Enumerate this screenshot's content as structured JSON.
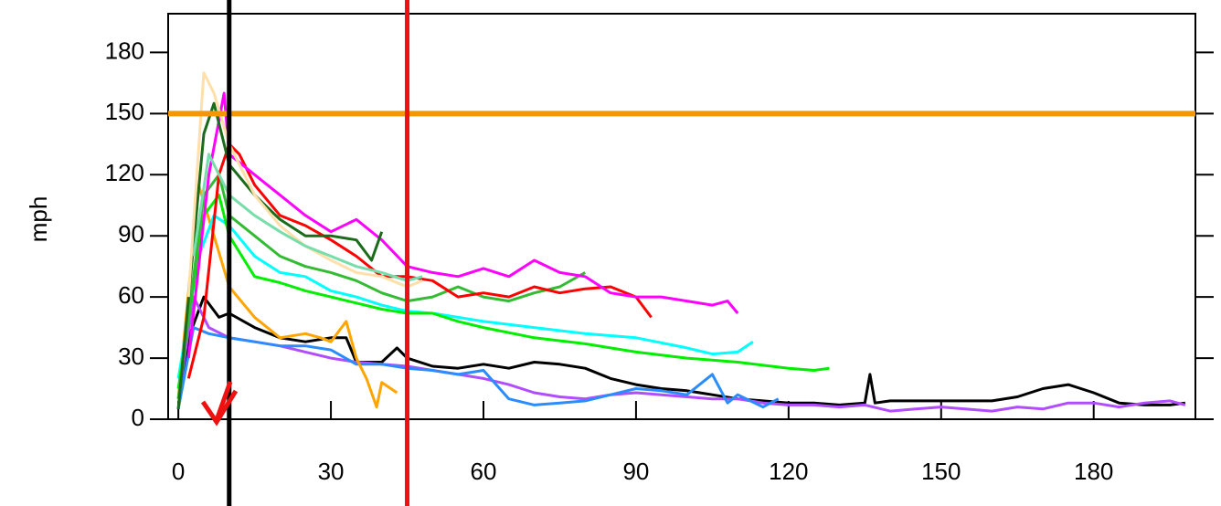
{
  "chart_data": {
    "type": "line",
    "y_label": "mph",
    "xlim": [
      -2,
      200
    ],
    "ylim": [
      0,
      199
    ],
    "xticks": [
      0,
      30,
      60,
      90,
      120,
      150,
      180
    ],
    "yticks": [
      0,
      30,
      60,
      90,
      120,
      150,
      180
    ],
    "hlines": [
      {
        "value": 150,
        "color": "#f5960a"
      }
    ],
    "vlines": [
      {
        "value": 10,
        "color": "#000000"
      },
      {
        "value": 45,
        "color": "#ee1111"
      }
    ],
    "series": [
      {
        "color": "#000000",
        "x": [
          0,
          2,
          5,
          8,
          10,
          15,
          20,
          25,
          30,
          33,
          35,
          40,
          43,
          45,
          50,
          55,
          60,
          65,
          70,
          75,
          80,
          85,
          90,
          95,
          100,
          105,
          110,
          115,
          120,
          125,
          130,
          135,
          136,
          137,
          140,
          150,
          160,
          165,
          170,
          175,
          180,
          185,
          190,
          195,
          198
        ],
        "values": [
          5,
          40,
          60,
          50,
          52,
          45,
          40,
          38,
          40,
          40,
          28,
          28,
          35,
          30,
          26,
          25,
          27,
          25,
          28,
          27,
          25,
          20,
          17,
          15,
          14,
          12,
          10,
          9,
          8,
          8,
          7,
          8,
          22,
          8,
          9,
          9,
          9,
          11,
          15,
          17,
          13,
          8,
          7,
          7,
          8
        ]
      },
      {
        "color": "#b24dff",
        "x": [
          0,
          3,
          6,
          10,
          15,
          20,
          25,
          30,
          35,
          40,
          45,
          50,
          55,
          60,
          65,
          70,
          75,
          80,
          85,
          90,
          95,
          100,
          105,
          110,
          115,
          120,
          125,
          130,
          135,
          140,
          145,
          150,
          160,
          165,
          170,
          175,
          180,
          185,
          190,
          195,
          198
        ],
        "values": [
          10,
          60,
          45,
          40,
          38,
          36,
          33,
          30,
          28,
          27,
          26,
          24,
          22,
          20,
          17,
          13,
          11,
          10,
          12,
          13,
          12,
          11,
          10,
          10,
          8,
          7,
          7,
          6,
          7,
          4,
          5,
          6,
          4,
          6,
          5,
          8,
          8,
          6,
          8,
          9,
          7
        ]
      },
      {
        "color": "#2a8cff",
        "x": [
          0,
          3,
          6,
          10,
          15,
          20,
          25,
          30,
          35,
          40,
          45,
          50,
          55,
          60,
          65,
          70,
          75,
          80,
          85,
          90,
          95,
          100,
          105,
          108,
          110,
          115,
          118
        ],
        "values": [
          5,
          45,
          42,
          40,
          38,
          36,
          36,
          34,
          27,
          27,
          25,
          24,
          22,
          24,
          10,
          7,
          8,
          9,
          12,
          15,
          14,
          12,
          22,
          8,
          12,
          6,
          10
        ]
      },
      {
        "color": "#ffa500",
        "x": [
          0,
          4,
          7,
          10,
          15,
          20,
          25,
          28,
          30,
          33,
          35,
          37,
          39,
          40,
          43
        ],
        "values": [
          10,
          115,
          90,
          65,
          50,
          40,
          42,
          40,
          38,
          48,
          30,
          20,
          6,
          18,
          13
        ]
      },
      {
        "color": "#00ffff",
        "x": [
          0,
          4,
          7,
          10,
          15,
          20,
          25,
          30,
          35,
          40,
          45,
          50,
          55,
          60,
          70,
          80,
          90,
          100,
          105,
          110,
          113
        ],
        "values": [
          20,
          80,
          100,
          95,
          80,
          72,
          70,
          63,
          60,
          56,
          53,
          52,
          50,
          48,
          45,
          42,
          40,
          35,
          32,
          33,
          38
        ]
      },
      {
        "color": "#00ee00",
        "x": [
          0,
          5,
          8,
          10,
          15,
          20,
          25,
          30,
          35,
          40,
          45,
          50,
          55,
          60,
          70,
          80,
          90,
          100,
          110,
          120,
          125,
          128
        ],
        "values": [
          15,
          100,
          110,
          90,
          70,
          67,
          63,
          60,
          57,
          54,
          52,
          52,
          48,
          45,
          40,
          37,
          33,
          30,
          28,
          25,
          24,
          25
        ]
      },
      {
        "color": "#33bb33",
        "x": [
          0,
          5,
          8,
          10,
          15,
          20,
          25,
          30,
          35,
          40,
          45,
          50,
          55,
          60,
          65,
          70,
          75,
          80
        ],
        "values": [
          10,
          110,
          120,
          100,
          90,
          80,
          75,
          72,
          68,
          62,
          58,
          60,
          65,
          60,
          58,
          62,
          65,
          72
        ]
      },
      {
        "color": "#ff0000",
        "x": [
          2,
          5,
          8,
          10,
          12,
          15,
          20,
          25,
          30,
          35,
          40,
          45,
          50,
          55,
          60,
          65,
          70,
          75,
          80,
          85,
          90,
          93
        ],
        "values": [
          20,
          50,
          120,
          135,
          130,
          115,
          100,
          95,
          88,
          80,
          70,
          70,
          68,
          60,
          62,
          60,
          65,
          62,
          64,
          65,
          60,
          50
        ]
      },
      {
        "color": "#ff00ff",
        "x": [
          2,
          6,
          9,
          10,
          15,
          20,
          25,
          30,
          35,
          40,
          45,
          50,
          55,
          60,
          65,
          70,
          75,
          80,
          85,
          90,
          95,
          100,
          105,
          108,
          110
        ],
        "values": [
          30,
          120,
          160,
          130,
          120,
          110,
          100,
          92,
          98,
          88,
          75,
          72,
          70,
          74,
          70,
          78,
          72,
          70,
          62,
          60,
          60,
          58,
          56,
          58,
          52
        ]
      },
      {
        "color": "#1a6b1a",
        "x": [
          0,
          5,
          7,
          10,
          15,
          20,
          25,
          30,
          35,
          38,
          40
        ],
        "values": [
          5,
          140,
          155,
          125,
          110,
          98,
          90,
          90,
          88,
          78,
          92
        ]
      },
      {
        "color": "#ffdfaa",
        "x": [
          2,
          5,
          7,
          10,
          15,
          20,
          25,
          30,
          35,
          40,
          45,
          48
        ],
        "values": [
          60,
          170,
          160,
          135,
          110,
          95,
          85,
          78,
          72,
          70,
          65,
          68
        ]
      },
      {
        "color": "#77ddaa",
        "x": [
          3,
          6,
          10,
          15,
          20,
          25,
          30,
          35,
          40,
          45,
          48
        ],
        "values": [
          80,
          130,
          110,
          100,
          92,
          85,
          80,
          75,
          72,
          68,
          70
        ]
      }
    ]
  }
}
